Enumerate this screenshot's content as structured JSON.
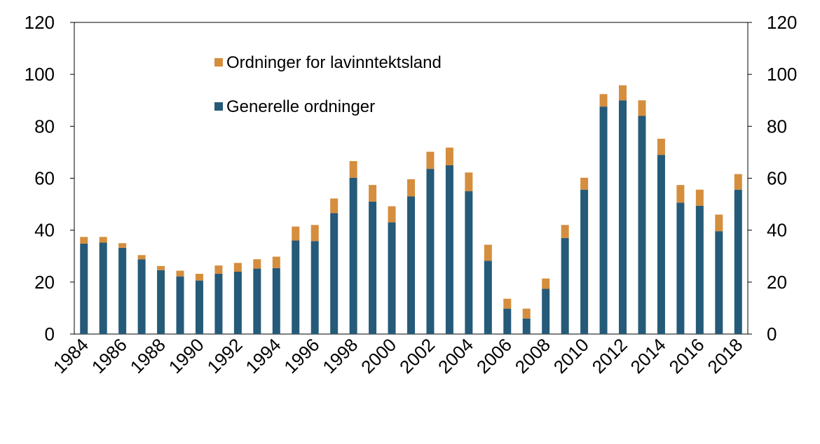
{
  "chart_data": {
    "type": "bar",
    "stacked": true,
    "title": "",
    "xlabel": "",
    "ylabel": "",
    "ylim": [
      0,
      120
    ],
    "y_ticks": [
      0,
      20,
      40,
      60,
      80,
      100,
      120
    ],
    "right_axis": true,
    "grid": false,
    "legend_position": "top-center",
    "categories": [
      "1984",
      "1985",
      "1986",
      "1987",
      "1988",
      "1989",
      "1990",
      "1991",
      "1992",
      "1993",
      "1994",
      "1995",
      "1996",
      "1997",
      "1998",
      "1999",
      "2000",
      "2001",
      "2002",
      "2003",
      "2004",
      "2005",
      "2006",
      "2007",
      "2008",
      "2009",
      "2010",
      "2011",
      "2012",
      "2013",
      "2014",
      "2015",
      "2016",
      "2017",
      "2018"
    ],
    "x_tick_labels": [
      "1984",
      "1986",
      "1988",
      "1990",
      "1992",
      "1994",
      "1996",
      "1998",
      "2000",
      "2002",
      "2004",
      "2006",
      "2008",
      "2010",
      "2012",
      "2014",
      "2016",
      "2018"
    ],
    "series": [
      {
        "name": "Generelle ordninger",
        "color": "#255a79",
        "values": [
          34.8,
          35.2,
          33.2,
          28.8,
          24.6,
          22.2,
          20.6,
          23.2,
          24.0,
          25.2,
          25.4,
          36.0,
          35.8,
          46.6,
          60.2,
          51.0,
          43.0,
          53.0,
          63.6,
          65.0,
          55.0,
          28.2,
          9.8,
          6.0,
          17.4,
          37.0,
          55.6,
          87.6,
          90.0,
          84.0,
          69.0,
          50.6,
          49.4,
          39.6,
          55.6
        ]
      },
      {
        "name": "Ordninger for lavinntektsland",
        "color": "#d58e3e",
        "values": [
          2.6,
          2.2,
          1.8,
          1.6,
          1.6,
          2.2,
          2.6,
          3.2,
          3.4,
          3.6,
          4.4,
          5.4,
          6.2,
          5.6,
          6.4,
          6.4,
          6.2,
          6.6,
          6.6,
          6.8,
          7.2,
          6.2,
          3.8,
          3.8,
          4.0,
          5.0,
          4.6,
          4.8,
          5.8,
          6.0,
          6.2,
          6.8,
          6.2,
          6.4,
          6.0
        ]
      }
    ],
    "legend": [
      {
        "label": "Ordninger for lavinntektsland",
        "color": "#d58e3e"
      },
      {
        "label": "Generelle ordninger",
        "color": "#255a79"
      }
    ]
  }
}
